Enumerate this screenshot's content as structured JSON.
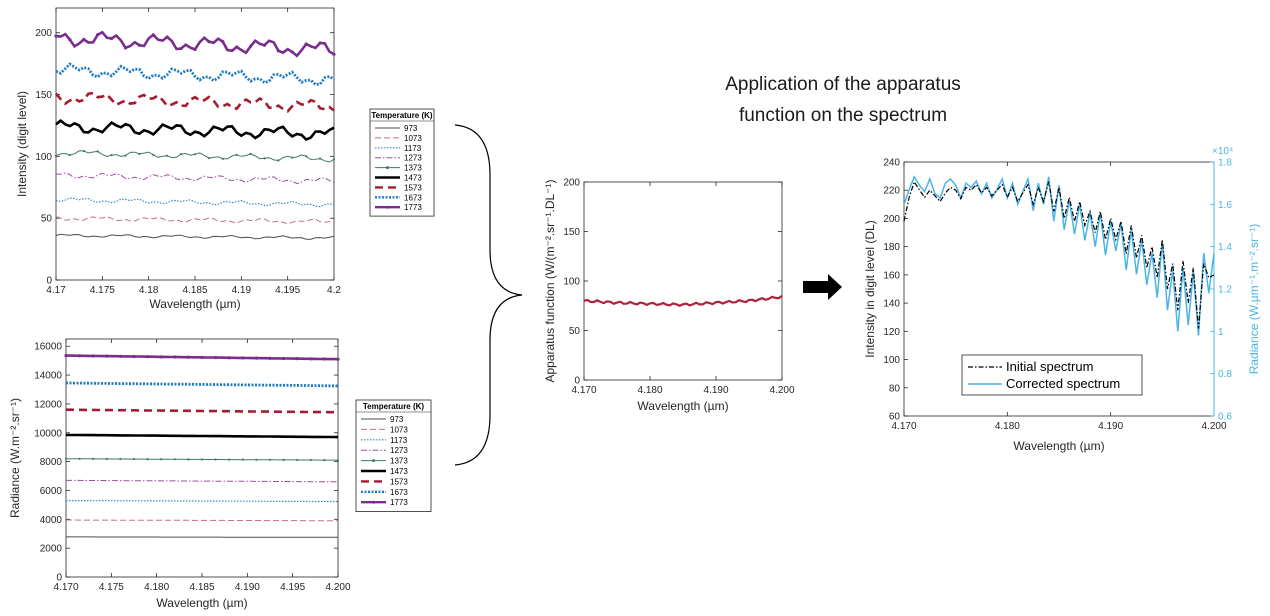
{
  "title_lines": [
    "Application of the apparatus",
    "function on the spectrum"
  ],
  "colors": {
    "c973": "#4d4d4d",
    "c1073": "#c8707e",
    "c1173": "#3a86c8",
    "c1273": "#9b4ea2",
    "c1373": "#3d7a66",
    "c1473": "#000000",
    "c1573": "#a51c30",
    "c1673": "#1f7bc0",
    "c1773": "#7b2d8e",
    "apparatus": "#b0223c",
    "initial": "#000000",
    "corrected": "#4ab4e6",
    "right_axis": "#4ab4e6"
  },
  "chart_data": [
    {
      "id": "intensity",
      "type": "line",
      "xlabel": "Wavelength (µm)",
      "ylabel": "Intensity (digit level)",
      "xlim": [
        4.17,
        4.2
      ],
      "ylim": [
        0,
        220
      ],
      "xticks": [
        4.17,
        4.175,
        4.18,
        4.185,
        4.19,
        4.195,
        4.2
      ],
      "xtick_labels": [
        "4.17",
        "4.175",
        "4.18",
        "4.185",
        "4.19",
        "4.195",
        "4.2"
      ],
      "yticks": [
        0,
        50,
        100,
        150,
        200
      ],
      "ytick_labels": [
        "0",
        "50",
        "100",
        "150",
        "200"
      ],
      "legend_title": "Temperature (K)",
      "legend_position": "outside-right",
      "series": [
        {
          "name": "973",
          "start": 36,
          "end": 34,
          "amp": 1
        },
        {
          "name": "1073",
          "start": 50,
          "end": 47,
          "amp": 1.5
        },
        {
          "name": "1173",
          "start": 65,
          "end": 61,
          "amp": 1.5
        },
        {
          "name": "1273",
          "start": 85,
          "end": 80,
          "amp": 2
        },
        {
          "name": "1373",
          "start": 103,
          "end": 98,
          "amp": 2
        },
        {
          "name": "1473",
          "start": 124,
          "end": 118,
          "amp": 4
        },
        {
          "name": "1573",
          "start": 148,
          "end": 140,
          "amp": 4
        },
        {
          "name": "1673",
          "start": 170,
          "end": 162,
          "amp": 4
        },
        {
          "name": "1773",
          "start": 196,
          "end": 186,
          "amp": 5
        }
      ]
    },
    {
      "id": "radiance",
      "type": "line",
      "xlabel": "Wavelength (µm)",
      "ylabel": "Radiance (W.m⁻².sr⁻¹)",
      "xlim": [
        4.17,
        4.2
      ],
      "ylim": [
        0,
        16500
      ],
      "xticks": [
        4.17,
        4.175,
        4.18,
        4.185,
        4.19,
        4.195,
        4.2
      ],
      "xtick_labels": [
        "4.170",
        "4.175",
        "4.180",
        "4.185",
        "4.190",
        "4.195",
        "4.200"
      ],
      "yticks": [
        0,
        2000,
        4000,
        6000,
        8000,
        10000,
        12000,
        14000,
        16000
      ],
      "ytick_labels": [
        "0",
        "2000",
        "4000",
        "6000",
        "8000",
        "10000",
        "12000",
        "14000",
        "16000"
      ],
      "legend_title": "Temperature (K)",
      "legend_position": "outside-right",
      "series": [
        {
          "name": "973",
          "start": 2780,
          "end": 2750
        },
        {
          "name": "1073",
          "start": 3950,
          "end": 3900
        },
        {
          "name": "1173",
          "start": 5300,
          "end": 5230
        },
        {
          "name": "1273",
          "start": 6700,
          "end": 6600
        },
        {
          "name": "1373",
          "start": 8200,
          "end": 8100
        },
        {
          "name": "1473",
          "start": 9850,
          "end": 9700
        },
        {
          "name": "1573",
          "start": 11600,
          "end": 11420
        },
        {
          "name": "1673",
          "start": 13450,
          "end": 13250
        },
        {
          "name": "1773",
          "start": 15350,
          "end": 15100
        }
      ]
    },
    {
      "id": "apparatus",
      "type": "line",
      "xlabel": "Wavelength (µm)",
      "ylabel": "Apparatus function (W/(m⁻².sr⁻¹.DL⁻¹)",
      "xlim": [
        4.17,
        4.2
      ],
      "ylim": [
        0,
        200
      ],
      "xticks": [
        4.17,
        4.18,
        4.19,
        4.2
      ],
      "xtick_labels": [
        "4.170",
        "4.180",
        "4.190",
        "4.200"
      ],
      "yticks": [
        0,
        50,
        100,
        150,
        200
      ],
      "ytick_labels": [
        "0",
        "50",
        "100",
        "150",
        "200"
      ],
      "x": [
        4.17,
        4.175,
        4.18,
        4.185,
        4.19,
        4.195,
        4.2
      ],
      "values": [
        80,
        78,
        77,
        76,
        78,
        80,
        84
      ]
    },
    {
      "id": "corrected",
      "type": "line",
      "xlabel": "Wavelength (µm)",
      "ylabel": "Intensity in digit level (DL)",
      "ylabel_right": "Radiance (W.µm⁻¹.m⁻².sr⁻¹)",
      "right_exponent": "×10⁴",
      "xlim": [
        4.17,
        4.2
      ],
      "ylim": [
        60,
        240
      ],
      "ylim_right": [
        0.6,
        1.8
      ],
      "xticks": [
        4.17,
        4.18,
        4.19,
        4.2
      ],
      "xtick_labels": [
        "4.170",
        "4.180",
        "4.190",
        "4.200"
      ],
      "yticks": [
        60,
        80,
        100,
        120,
        140,
        160,
        180,
        200,
        220,
        240
      ],
      "ytick_labels": [
        "60",
        "80",
        "100",
        "120",
        "140",
        "160",
        "180",
        "200",
        "220",
        "240"
      ],
      "yticks_right": [
        0.6,
        0.8,
        1.0,
        1.2,
        1.4,
        1.6,
        1.8
      ],
      "ytick_labels_right": [
        "0.6",
        "0.8",
        "1",
        "1.2",
        "1.4",
        "1.6",
        "1.8"
      ],
      "legend_position": "lower-left",
      "x": [
        4.17,
        4.1705,
        4.171,
        4.1715,
        4.172,
        4.1725,
        4.173,
        4.1735,
        4.174,
        4.1745,
        4.175,
        4.1755,
        4.176,
        4.1765,
        4.177,
        4.1775,
        4.178,
        4.1785,
        4.179,
        4.1795,
        4.18,
        4.1805,
        4.181,
        4.1815,
        4.182,
        4.1825,
        4.183,
        4.1835,
        4.184,
        4.1845,
        4.185,
        4.1855,
        4.186,
        4.1865,
        4.187,
        4.1875,
        4.188,
        4.1885,
        4.189,
        4.1895,
        4.19,
        4.1905,
        4.191,
        4.1915,
        4.192,
        4.1925,
        4.193,
        4.1935,
        4.194,
        4.1945,
        4.195,
        4.1955,
        4.196,
        4.1965,
        4.197,
        4.1975,
        4.198,
        4.1985,
        4.199,
        4.1995,
        4.2
      ],
      "series": [
        {
          "name": "Initial spectrum",
          "axis": "left",
          "values": [
            198,
            215,
            226,
            220,
            215,
            220,
            216,
            212,
            218,
            222,
            220,
            214,
            222,
            220,
            224,
            218,
            222,
            216,
            220,
            224,
            215,
            222,
            212,
            218,
            224,
            210,
            222,
            212,
            226,
            205,
            222,
            200,
            215,
            198,
            212,
            195,
            205,
            190,
            205,
            185,
            200,
            185,
            198,
            175,
            195,
            172,
            188,
            165,
            180,
            158,
            185,
            150,
            168,
            135,
            170,
            140,
            165,
            122,
            168,
            158,
            160
          ]
        },
        {
          "name": "Corrected spectrum",
          "axis": "right",
          "values": [
            1.6,
            1.67,
            1.73,
            1.69,
            1.66,
            1.72,
            1.65,
            1.63,
            1.7,
            1.72,
            1.69,
            1.63,
            1.7,
            1.68,
            1.71,
            1.65,
            1.7,
            1.63,
            1.67,
            1.72,
            1.63,
            1.7,
            1.6,
            1.66,
            1.72,
            1.57,
            1.7,
            1.6,
            1.73,
            1.52,
            1.69,
            1.48,
            1.62,
            1.46,
            1.6,
            1.43,
            1.56,
            1.4,
            1.56,
            1.36,
            1.52,
            1.38,
            1.51,
            1.29,
            1.48,
            1.27,
            1.43,
            1.22,
            1.37,
            1.16,
            1.42,
            1.1,
            1.29,
            1.0,
            1.3,
            1.03,
            1.28,
            0.98,
            1.37,
            1.18,
            1.37
          ]
        }
      ]
    }
  ]
}
